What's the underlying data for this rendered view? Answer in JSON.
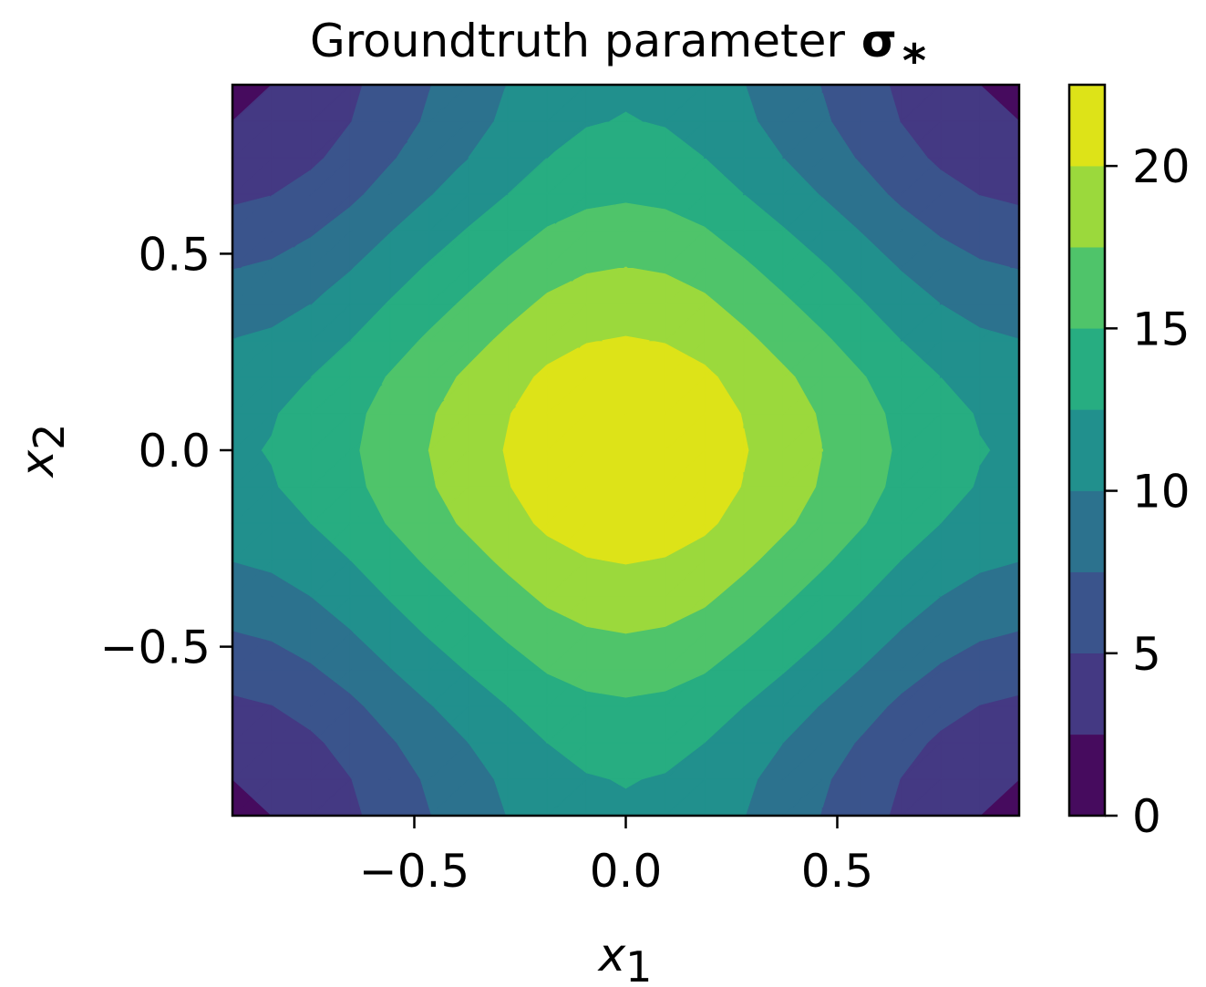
{
  "chart_data": {
    "type": "contour",
    "title": {
      "text": "Groundtruth parameter",
      "symbol": "σ",
      "subscript": "*"
    },
    "xlabel": {
      "base": "x",
      "sub": "1"
    },
    "ylabel": {
      "base": "x",
      "sub": "2"
    },
    "xlim": [
      -0.93,
      0.93
    ],
    "ylim": [
      -0.93,
      0.93
    ],
    "xticks": [
      {
        "value": -0.5,
        "label": "−0.5"
      },
      {
        "value": 0,
        "label": "0.0"
      },
      {
        "value": 0.5,
        "label": "0.5"
      }
    ],
    "yticks": [
      {
        "value": -0.5,
        "label": "−0.5"
      },
      {
        "value": 0,
        "label": "0.0"
      },
      {
        "value": 0.5,
        "label": "0.5"
      }
    ],
    "x": [
      -0.93,
      -0.837,
      -0.744,
      -0.651,
      -0.558,
      -0.465,
      -0.372,
      -0.279,
      -0.186,
      -0.093,
      0,
      0.093,
      0.186,
      0.279,
      0.372,
      0.465,
      0.558,
      0.651,
      0.744,
      0.837,
      0.93
    ],
    "y": [
      -0.93,
      -0.837,
      -0.744,
      -0.651,
      -0.558,
      -0.465,
      -0.372,
      -0.279,
      -0.186,
      -0.093,
      0,
      0.093,
      0.186,
      0.279,
      0.372,
      0.465,
      0.558,
      0.651,
      0.744,
      0.837,
      0.93
    ],
    "z": [
      [
        2.1,
        2.5,
        3.35,
        4.55,
        6.0,
        7.41,
        8.75,
        10.05,
        11.25,
        11.95,
        12.2,
        11.95,
        11.25,
        10.05,
        8.75,
        7.41,
        6.0,
        4.55,
        3.35,
        2.5,
        2.1
      ],
      [
        2.5,
        2.9,
        3.75,
        4.95,
        6.4,
        7.81,
        9.15,
        10.45,
        11.65,
        12.35,
        12.6,
        12.35,
        11.65,
        10.45,
        9.15,
        7.81,
        6.4,
        4.95,
        3.75,
        2.9,
        2.5
      ],
      [
        3.35,
        3.75,
        4.6,
        5.8,
        7.25,
        8.66,
        10.0,
        11.3,
        12.5,
        13.2,
        13.45,
        13.2,
        12.5,
        11.3,
        10.0,
        8.66,
        7.25,
        5.8,
        4.6,
        3.75,
        3.35
      ],
      [
        4.55,
        4.95,
        5.8,
        7.0,
        8.45,
        9.86,
        11.2,
        12.5,
        13.7,
        14.4,
        14.65,
        14.4,
        13.7,
        12.5,
        11.2,
        9.86,
        8.45,
        7.0,
        5.8,
        4.95,
        4.55
      ],
      [
        6.0,
        6.4,
        7.25,
        8.45,
        9.9,
        11.31,
        12.65,
        13.95,
        15.15,
        15.85,
        16.1,
        15.85,
        15.15,
        13.95,
        12.65,
        11.31,
        9.9,
        8.45,
        7.25,
        6.4,
        6.0
      ],
      [
        7.41,
        7.81,
        8.66,
        9.86,
        11.31,
        12.72,
        14.06,
        15.36,
        16.56,
        17.26,
        17.51,
        17.26,
        16.56,
        15.36,
        14.06,
        12.72,
        11.31,
        9.86,
        8.66,
        7.81,
        7.41
      ],
      [
        8.75,
        9.15,
        10.0,
        11.2,
        12.65,
        14.06,
        15.4,
        16.7,
        17.9,
        18.6,
        18.85,
        18.6,
        17.9,
        16.7,
        15.4,
        14.06,
        12.65,
        11.2,
        10.0,
        9.15,
        8.75
      ],
      [
        10.05,
        10.45,
        11.3,
        12.5,
        13.95,
        15.36,
        16.7,
        18.0,
        19.2,
        19.9,
        20.15,
        19.9,
        19.2,
        18.0,
        16.7,
        15.36,
        13.95,
        12.5,
        11.3,
        10.45,
        10.05
      ],
      [
        11.25,
        11.65,
        12.5,
        13.7,
        15.15,
        16.56,
        17.9,
        19.2,
        20.4,
        21.1,
        21.35,
        21.1,
        20.4,
        19.2,
        17.9,
        16.56,
        15.15,
        13.7,
        12.5,
        11.65,
        11.25
      ],
      [
        11.95,
        12.35,
        13.2,
        14.4,
        15.85,
        17.26,
        18.6,
        19.9,
        21.1,
        21.8,
        22.05,
        21.8,
        21.1,
        19.9,
        18.6,
        17.26,
        15.85,
        14.4,
        13.2,
        12.35,
        11.95
      ],
      [
        12.2,
        12.6,
        13.45,
        14.65,
        16.1,
        17.51,
        18.85,
        20.15,
        21.35,
        22.05,
        22.3,
        22.05,
        21.35,
        20.15,
        18.85,
        17.51,
        16.1,
        14.65,
        13.45,
        12.6,
        12.2
      ],
      [
        11.95,
        12.35,
        13.2,
        14.4,
        15.85,
        17.26,
        18.6,
        19.9,
        21.1,
        21.8,
        22.05,
        21.8,
        21.1,
        19.9,
        18.6,
        17.26,
        15.85,
        14.4,
        13.2,
        12.35,
        11.95
      ],
      [
        11.25,
        11.65,
        12.5,
        13.7,
        15.15,
        16.56,
        17.9,
        19.2,
        20.4,
        21.1,
        21.35,
        21.1,
        20.4,
        19.2,
        17.9,
        16.56,
        15.15,
        13.7,
        12.5,
        11.65,
        11.25
      ],
      [
        10.05,
        10.45,
        11.3,
        12.5,
        13.95,
        15.36,
        16.7,
        18.0,
        19.2,
        19.9,
        20.15,
        19.9,
        19.2,
        18.0,
        16.7,
        15.36,
        13.95,
        12.5,
        11.3,
        10.45,
        10.05
      ],
      [
        8.75,
        9.15,
        10.0,
        11.2,
        12.65,
        14.06,
        15.4,
        16.7,
        17.9,
        18.6,
        18.85,
        18.6,
        17.9,
        16.7,
        15.4,
        14.06,
        12.65,
        11.2,
        10.0,
        9.15,
        8.75
      ],
      [
        7.41,
        7.81,
        8.66,
        9.86,
        11.31,
        12.72,
        14.06,
        15.36,
        16.56,
        17.26,
        17.51,
        17.26,
        16.56,
        15.36,
        14.06,
        12.72,
        11.31,
        9.86,
        8.66,
        7.81,
        7.41
      ],
      [
        6.0,
        6.4,
        7.25,
        8.45,
        9.9,
        11.31,
        12.65,
        13.95,
        15.15,
        15.85,
        16.1,
        15.85,
        15.15,
        13.95,
        12.65,
        11.31,
        9.9,
        8.45,
        7.25,
        6.4,
        6.0
      ],
      [
        4.55,
        4.95,
        5.8,
        7.0,
        8.45,
        9.86,
        11.2,
        12.5,
        13.7,
        14.4,
        14.65,
        14.4,
        13.7,
        12.5,
        11.2,
        9.86,
        8.45,
        7.0,
        5.8,
        4.95,
        4.55
      ],
      [
        3.35,
        3.75,
        4.6,
        5.8,
        7.25,
        8.66,
        10.0,
        11.3,
        12.5,
        13.2,
        13.45,
        13.2,
        12.5,
        11.3,
        10.0,
        8.66,
        7.25,
        5.8,
        4.6,
        3.75,
        3.35
      ],
      [
        2.5,
        2.9,
        3.75,
        4.95,
        6.4,
        7.81,
        9.15,
        10.45,
        11.65,
        12.35,
        12.6,
        12.35,
        11.65,
        10.45,
        9.15,
        7.81,
        6.4,
        4.95,
        3.75,
        2.9,
        2.5
      ],
      [
        2.1,
        2.5,
        3.35,
        4.55,
        6.0,
        7.41,
        8.75,
        10.05,
        11.25,
        11.95,
        12.2,
        11.95,
        11.25,
        10.05,
        8.75,
        7.41,
        6.0,
        4.55,
        3.35,
        2.5,
        2.1
      ]
    ],
    "levels": [
      0,
      2.5,
      5,
      7.5,
      10,
      12.5,
      15,
      17.5,
      20,
      22.5
    ],
    "colors": [
      "#460b5e",
      "#443983",
      "#3a548c",
      "#2c728e",
      "#21908d",
      "#27ad81",
      "#4fc46a",
      "#9bd93c",
      "#dde318"
    ],
    "colorbar_ticks": [
      0,
      5,
      10,
      15,
      20
    ]
  }
}
